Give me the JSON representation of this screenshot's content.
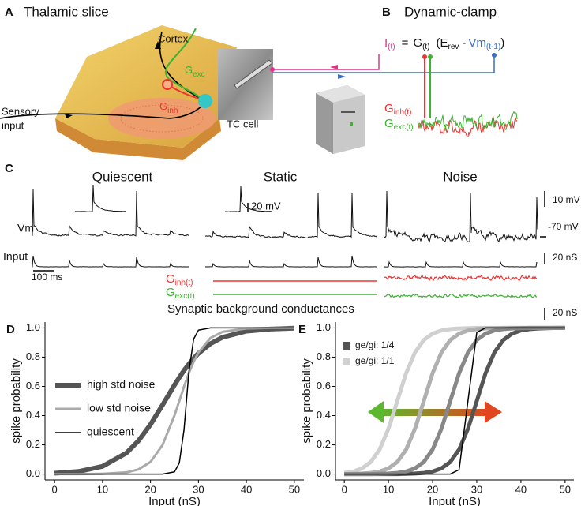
{
  "panel_a": {
    "letter": "A",
    "title": "Thalamic slice",
    "cortex": "Cortex",
    "sensory_input": [
      "Sensory",
      "input"
    ],
    "tc_cell": "TC cell",
    "g_exc": {
      "symbol": "G",
      "sub": "exc"
    },
    "g_inh": {
      "symbol": "G",
      "sub": "inh"
    }
  },
  "panel_b": {
    "letter": "B",
    "title": "Dynamic-clamp",
    "equation": {
      "i": "I",
      "i_sub": "(t)",
      "eq": "=",
      "g": "G",
      "g_sub": "(t)",
      "open": "(E",
      "e_sub": "rev",
      "minus": "-",
      "vm": "Vm",
      "vm_sub": "(t-1)",
      "close": ")"
    },
    "g_inh": {
      "symbol": "G",
      "sub": "inh(t)"
    },
    "g_exc": {
      "symbol": "G",
      "sub": "exc(t)"
    }
  },
  "panel_c": {
    "letter": "C",
    "conditions": [
      "Quiescent",
      "Static",
      "Noise"
    ],
    "vm": "Vm",
    "input": "Input",
    "time_bar": "100 ms",
    "inset_bar": "20 mV",
    "vm_bar": "10 mV",
    "rest": "-70 mV",
    "input_bar": "20 nS",
    "cond_bar": "20 nS",
    "g_inh": {
      "symbol": "G",
      "sub": "inh(t)"
    },
    "g_exc": {
      "symbol": "G",
      "sub": "exc(t)"
    },
    "caption": "Synaptic background conductances"
  },
  "chart_data": [
    {
      "type": "line",
      "label": "D",
      "xlabel": "Input (nS)",
      "ylabel": "spike probability",
      "x": [
        0,
        5,
        10,
        15,
        17.5,
        20,
        22.5,
        25,
        26,
        27,
        28,
        29,
        30,
        32.5,
        35,
        40,
        45,
        50
      ],
      "series": [
        {
          "name": "high std noise",
          "color": "#555555",
          "values": [
            0.006,
            0.018,
            0.053,
            0.145,
            0.228,
            0.339,
            0.472,
            0.609,
            0.661,
            0.709,
            0.752,
            0.791,
            0.826,
            0.892,
            0.935,
            0.978,
            0.992,
            0.998
          ]
        },
        {
          "name": "low std noise",
          "color": "#aaaaaa",
          "values": [
            0,
            0,
            0.002,
            0.012,
            0.032,
            0.083,
            0.198,
            0.401,
            0.5,
            0.599,
            0.69,
            0.769,
            0.832,
            0.931,
            0.973,
            0.996,
            1,
            1
          ]
        },
        {
          "name": "quiescent",
          "color": "#000000",
          "values": [
            0,
            0,
            0,
            0,
            0,
            0,
            0,
            0.015,
            0.076,
            0.303,
            0.697,
            0.924,
            0.985,
            1,
            1,
            1,
            1,
            1
          ]
        }
      ],
      "xlim": [
        -2,
        52
      ],
      "ylim": [
        -0.04,
        1.04
      ],
      "xticks": [
        0,
        10,
        20,
        30,
        40,
        50
      ],
      "yticks": [
        {
          "value": 0,
          "label": "0.0"
        },
        0.2,
        0.4,
        0.6,
        0.8,
        {
          "value": 1,
          "label": "1.0"
        }
      ]
    },
    {
      "type": "line",
      "label": "E",
      "xlabel": "Input (nS)",
      "ylabel": "spike probability",
      "x": [
        0,
        2,
        4,
        6,
        8,
        10,
        12,
        14,
        16,
        18,
        20,
        22,
        24,
        26,
        28,
        30,
        32,
        34,
        36,
        38,
        40,
        42,
        44,
        46,
        48,
        50
      ],
      "series": [
        {
          "name": "ge/gi: 1/4",
          "color": "#555555",
          "values": [
            0,
            0,
            0,
            0,
            0,
            0,
            0,
            0.002,
            0.004,
            0.008,
            0.018,
            0.039,
            0.083,
            0.168,
            0.31,
            0.5,
            0.69,
            0.832,
            0.917,
            0.961,
            0.982,
            0.992,
            0.996,
            0.998,
            1,
            1
          ]
        },
        {
          "name": "ge/gi: 1/1",
          "color": "#d0d0d0",
          "values": [
            0.008,
            0.018,
            0.039,
            0.083,
            0.168,
            0.31,
            0.5,
            0.69,
            0.832,
            0.917,
            0.961,
            0.982,
            0.992,
            0.996,
            0.998,
            1,
            1,
            1,
            1,
            1,
            1,
            1,
            1,
            1,
            1,
            1
          ]
        },
        {
          "color": "#b0b0b0",
          "values": [
            0,
            0.002,
            0.004,
            0.008,
            0.018,
            0.039,
            0.083,
            0.168,
            0.31,
            0.5,
            0.69,
            0.832,
            0.917,
            0.961,
            0.982,
            0.992,
            0.996,
            0.998,
            1,
            1,
            1,
            1,
            1,
            1,
            1,
            1
          ]
        },
        {
          "color": "#888888",
          "values": [
            0,
            0,
            0,
            0,
            0.002,
            0.004,
            0.008,
            0.018,
            0.039,
            0.083,
            0.168,
            0.31,
            0.5,
            0.69,
            0.832,
            0.917,
            0.961,
            0.982,
            0.992,
            0.996,
            0.998,
            1,
            1,
            1,
            1,
            1
          ]
        },
        {
          "color": "#000000",
          "values": [
            0,
            0,
            0,
            0,
            0,
            0,
            0,
            0,
            0,
            0,
            0,
            0,
            0,
            0.03,
            0.5,
            0.97,
            1,
            1,
            1,
            1,
            1,
            1,
            1,
            1,
            1,
            1
          ]
        }
      ],
      "xlim": [
        -2,
        52
      ],
      "ylim": [
        -0.04,
        1.04
      ],
      "xticks": [
        0,
        10,
        20,
        30,
        40,
        50
      ],
      "yticks": [
        {
          "value": 0,
          "label": "0.0"
        },
        0.2,
        0.4,
        0.6,
        0.8,
        {
          "value": 1,
          "label": "1.0"
        }
      ]
    }
  ]
}
